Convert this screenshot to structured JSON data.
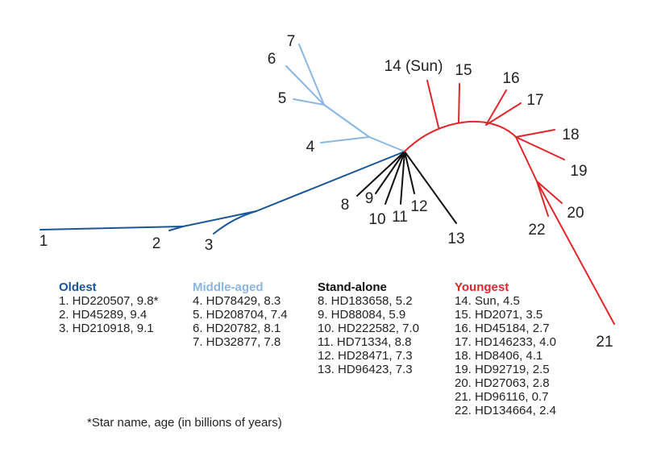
{
  "colors": {
    "oldest": "#1a5597",
    "middle": "#8ab6e2",
    "standalone": "#111111",
    "youngest": "#e0262b"
  },
  "nodes": [
    {
      "id": "1",
      "group": "oldest"
    },
    {
      "id": "2",
      "group": "oldest"
    },
    {
      "id": "3",
      "group": "oldest"
    },
    {
      "id": "4",
      "group": "middle"
    },
    {
      "id": "5",
      "group": "middle"
    },
    {
      "id": "6",
      "group": "middle"
    },
    {
      "id": "7",
      "group": "middle"
    },
    {
      "id": "8",
      "group": "standalone"
    },
    {
      "id": "9",
      "group": "standalone"
    },
    {
      "id": "10",
      "group": "standalone"
    },
    {
      "id": "11",
      "group": "standalone"
    },
    {
      "id": "12",
      "group": "standalone"
    },
    {
      "id": "13",
      "group": "standalone"
    },
    {
      "id": "14 (Sun)",
      "group": "youngest"
    },
    {
      "id": "15",
      "group": "youngest"
    },
    {
      "id": "16",
      "group": "youngest"
    },
    {
      "id": "17",
      "group": "youngest"
    },
    {
      "id": "18",
      "group": "youngest"
    },
    {
      "id": "19",
      "group": "youngest"
    },
    {
      "id": "20",
      "group": "youngest"
    },
    {
      "id": "21",
      "group": "youngest"
    },
    {
      "id": "22",
      "group": "youngest"
    }
  ],
  "legend": {
    "oldest": {
      "title": "Oldest",
      "items": [
        "1. HD220507, 9.8*",
        "2. HD45289, 9.4",
        "3. HD210918, 9.1"
      ]
    },
    "middle": {
      "title": "Middle-aged",
      "items": [
        "4. HD78429, 8.3",
        "5. HD208704, 7.4",
        "6. HD20782, 8.1",
        "7. HD32877, 7.8"
      ]
    },
    "standalone": {
      "title": "Stand-alone",
      "items": [
        "8. HD183658, 5.2",
        "9. HD88084, 5.9",
        "10. HD222582, 7.0",
        "11. HD71334, 8.8",
        "12. HD28471, 7.3",
        "13. HD96423, 7.3"
      ]
    },
    "youngest": {
      "title": "Youngest",
      "items": [
        "14. Sun, 4.5",
        "15. HD2071, 3.5",
        "16. HD45184, 2.7",
        "17. HD146233, 4.0",
        "18. HD8406, 4.1",
        "19. HD92719, 2.5",
        "20. HD27063, 2.8",
        "21. HD96116, 0.7",
        "22. HD134664, 2.4"
      ]
    }
  },
  "footnote": "*Star name, age (in billions of years)"
}
